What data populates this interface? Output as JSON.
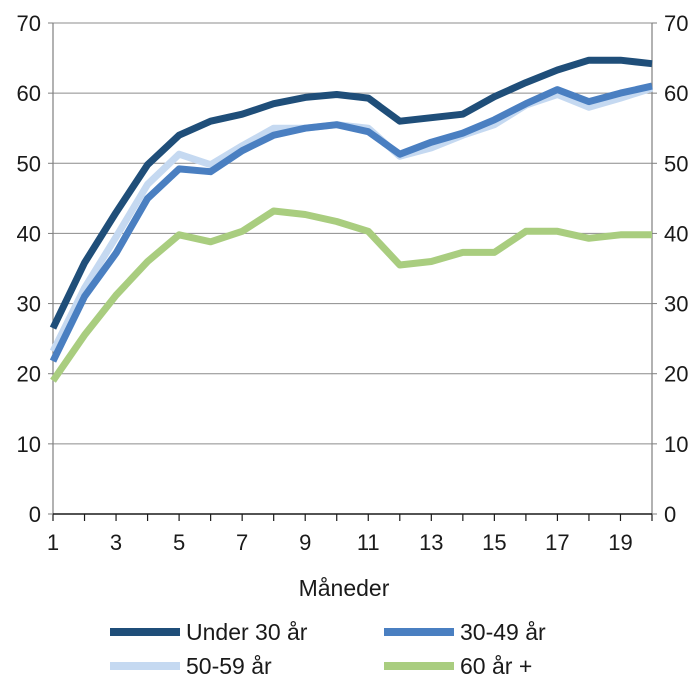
{
  "chart_data": {
    "type": "line",
    "title": "",
    "xlabel": "Måneder",
    "ylabel": "",
    "x": [
      1,
      2,
      3,
      4,
      5,
      6,
      7,
      8,
      9,
      10,
      11,
      12,
      13,
      14,
      15,
      16,
      17,
      18,
      19,
      20
    ],
    "x_tick_labels": [
      "1",
      "3",
      "5",
      "7",
      "9",
      "11",
      "13",
      "15",
      "17",
      "19"
    ],
    "x_tick_values": [
      1,
      3,
      5,
      7,
      9,
      11,
      13,
      15,
      17,
      19
    ],
    "xlim": [
      1,
      20
    ],
    "ylim": [
      0,
      70
    ],
    "y_ticks": [
      0,
      10,
      20,
      30,
      40,
      50,
      60,
      70
    ],
    "y_tick_labels": [
      "0",
      "10",
      "20",
      "30",
      "40",
      "50",
      "60",
      "70"
    ],
    "grid": true,
    "secondary_y_axis_mirrored": true,
    "legend_position": "bottom",
    "series": [
      {
        "name": "Under 30 år",
        "color": "#1f4e79",
        "values": [
          26.5,
          35.8,
          43.0,
          49.8,
          54.0,
          56.0,
          57.0,
          58.5,
          59.4,
          59.8,
          59.3,
          56.0,
          56.5,
          57.0,
          59.5,
          61.5,
          63.3,
          64.7,
          64.7,
          64.2
        ]
      },
      {
        "name": "30-49 år",
        "color": "#4a7fc1",
        "values": [
          21.8,
          31.0,
          37.2,
          45.0,
          49.2,
          48.8,
          51.8,
          54.0,
          55.0,
          55.5,
          54.5,
          51.3,
          53.0,
          54.3,
          56.2,
          58.5,
          60.5,
          58.8,
          60.0,
          61.0
        ]
      },
      {
        "name": "50-59 år",
        "color": "#c5d9f1",
        "values": [
          23.2,
          32.2,
          39.5,
          47.0,
          51.3,
          49.8,
          52.5,
          55.0,
          55.0,
          55.5,
          55.0,
          51.0,
          52.2,
          54.0,
          55.5,
          58.3,
          59.8,
          58.0,
          59.3,
          60.7
        ]
      },
      {
        "name": "60 år +",
        "color": "#a9cd7f",
        "values": [
          19.0,
          25.5,
          31.2,
          36.0,
          39.8,
          38.8,
          40.3,
          43.2,
          42.7,
          41.7,
          40.3,
          35.5,
          36.0,
          37.3,
          37.3,
          40.3,
          40.3,
          39.3,
          39.8,
          39.8
        ]
      }
    ]
  }
}
